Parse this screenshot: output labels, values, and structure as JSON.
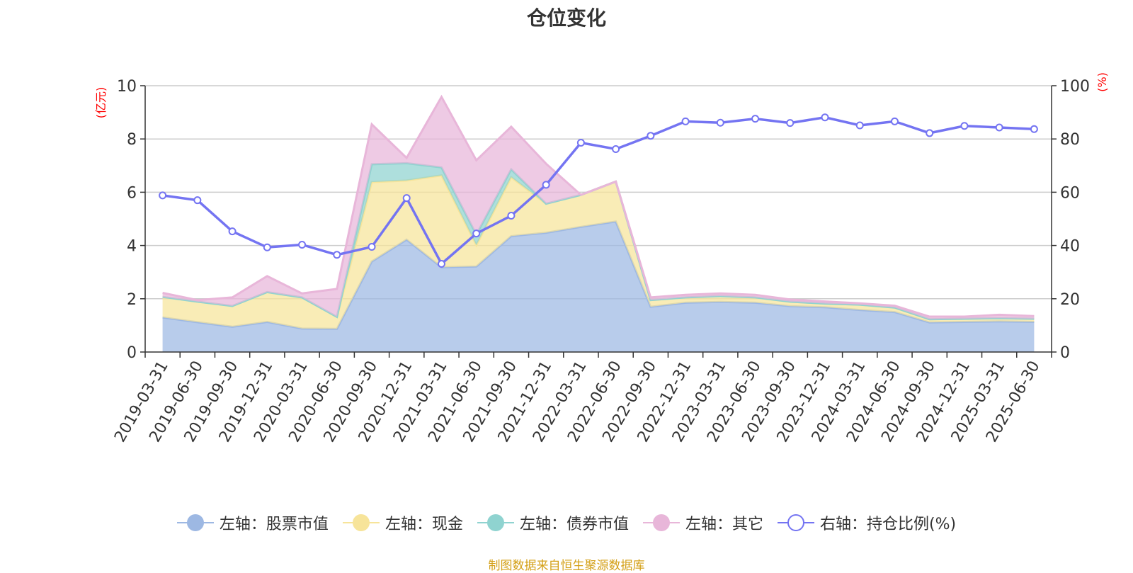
{
  "chart_data": {
    "type": "area",
    "title": "仓位变化",
    "categories": [
      "2019-03-31",
      "2019-06-30",
      "2019-09-30",
      "2019-12-31",
      "2020-03-31",
      "2020-06-30",
      "2020-09-30",
      "2020-12-31",
      "2021-03-31",
      "2021-06-30",
      "2021-09-30",
      "2021-12-31",
      "2022-03-31",
      "2022-06-30",
      "2022-09-30",
      "2022-12-31",
      "2023-03-31",
      "2023-06-30",
      "2023-09-30",
      "2023-12-31",
      "2024-03-31",
      "2024-06-30",
      "2024-09-30",
      "2024-12-31",
      "2025-03-31",
      "2025-06-30"
    ],
    "left_axis": {
      "unit": "(亿元)",
      "ylim": [
        0,
        10
      ],
      "ticks": [
        0,
        2,
        4,
        6,
        8,
        10
      ]
    },
    "right_axis": {
      "unit": "(%)",
      "ylim": [
        0,
        100
      ],
      "ticks": [
        0,
        20,
        40,
        60,
        80,
        100
      ]
    },
    "series": [
      {
        "name": "左轴：股票市值",
        "stack": true,
        "axis": "left",
        "color": "#9db8e3",
        "values": [
          1.3,
          1.12,
          0.95,
          1.13,
          0.88,
          0.87,
          3.4,
          4.22,
          3.18,
          3.21,
          4.35,
          4.48,
          4.7,
          4.9,
          1.7,
          1.85,
          1.88,
          1.85,
          1.72,
          1.68,
          1.58,
          1.5,
          1.11,
          1.13,
          1.15,
          1.13
        ]
      },
      {
        "name": "左轴：现金",
        "stack": true,
        "axis": "left",
        "color": "#f7e49a",
        "values": [
          0.77,
          0.77,
          0.78,
          1.12,
          1.17,
          0.45,
          2.98,
          2.22,
          3.45,
          0.8,
          2.21,
          1.09,
          1.2,
          1.5,
          0.25,
          0.2,
          0.22,
          0.2,
          0.17,
          0.14,
          0.2,
          0.17,
          0.12,
          0.12,
          0.12,
          0.12
        ]
      },
      {
        "name": "左轴：债券市值",
        "stack": true,
        "axis": "left",
        "color": "#8fd3d0",
        "values": [
          0.0,
          0.0,
          0.0,
          0.0,
          0.0,
          0.0,
          0.67,
          0.65,
          0.3,
          0.4,
          0.3,
          0.0,
          0.0,
          0.0,
          0.0,
          0.0,
          0.0,
          0.0,
          0.0,
          0.0,
          0.0,
          0.0,
          0.0,
          0.0,
          0.0,
          0.0
        ]
      },
      {
        "name": "左轴：其它",
        "stack": true,
        "axis": "left",
        "color": "#e8b6d9",
        "values": [
          0.15,
          0.06,
          0.32,
          0.6,
          0.15,
          1.05,
          1.5,
          0.2,
          2.65,
          2.79,
          1.6,
          1.5,
          0.0,
          0.0,
          0.1,
          0.1,
          0.1,
          0.1,
          0.08,
          0.08,
          0.05,
          0.07,
          0.1,
          0.08,
          0.13,
          0.1
        ]
      },
      {
        "name": "右轴：持仓比例(%)",
        "axis": "right",
        "type": "line",
        "color": "#7474f2",
        "values": [
          58.8,
          57.0,
          45.3,
          39.3,
          40.3,
          36.5,
          39.5,
          57.8,
          33.1,
          44.5,
          51.2,
          62.8,
          78.6,
          76.2,
          81.2,
          86.6,
          86.1,
          87.6,
          86.0,
          88.1,
          85.1,
          86.6,
          82.2,
          84.9,
          84.3,
          83.7
        ]
      }
    ],
    "grid": true,
    "legend_position": "bottom"
  },
  "source": "制图数据来自恒生聚源数据库"
}
